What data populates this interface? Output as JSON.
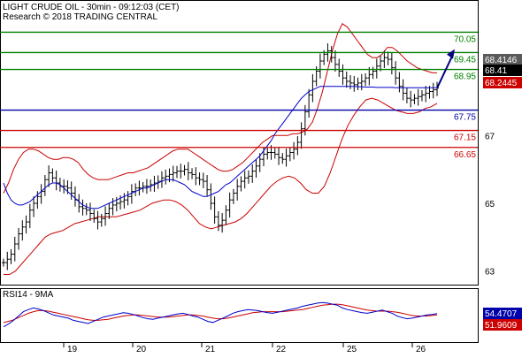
{
  "header": {
    "title": "LIGHT CRUDE OIL - 30min - 09:12:03 (CET)",
    "copyright": "Research © 2018 TRADING CENTRAL"
  },
  "colors": {
    "support": "#cc0000",
    "pivot": "#0000aa",
    "resistance": "#008000",
    "price_bars": "#000000",
    "moving_average": "#0000cc",
    "bollinger": "#cc0000",
    "arrow": "#000080",
    "badge_gray": "#5a5a5a",
    "badge_black": "#000000",
    "badge_red": "#cc0000",
    "badge_blue": "#0000aa"
  },
  "chart_data": [
    {
      "type": "line",
      "title": "",
      "ylim": [
        62.6,
        71.0
      ],
      "y_ticks": [
        63,
        65,
        67
      ],
      "x_ticks": [
        "19",
        "20",
        "21",
        "22",
        "25",
        "26"
      ],
      "grid": false,
      "levels": [
        {
          "value": 70.05,
          "label": "70.05",
          "kind": "resistance"
        },
        {
          "value": 69.45,
          "label": "69.45",
          "kind": "resistance"
        },
        {
          "value": 68.95,
          "label": "68.95",
          "kind": "resistance"
        },
        {
          "value": 67.75,
          "label": "67.75",
          "kind": "pivot"
        },
        {
          "value": 67.15,
          "label": "67.15",
          "kind": "support"
        },
        {
          "value": 66.65,
          "label": "66.65",
          "kind": "support"
        }
      ],
      "badges": [
        {
          "value": 68.4146,
          "label": "68.4146",
          "style": "gray"
        },
        {
          "value": 68.41,
          "label": "68.41",
          "style": "black"
        },
        {
          "value": 68.2445,
          "label": "68.2445",
          "style": "red"
        }
      ],
      "close": [
        63.25,
        63.35,
        63.5,
        63.8,
        64.1,
        64.3,
        64.45,
        64.8,
        65.0,
        65.2,
        65.35,
        65.7,
        65.9,
        65.75,
        65.6,
        65.5,
        65.5,
        65.45,
        65.3,
        65.1,
        64.9,
        64.85,
        64.8,
        64.7,
        64.55,
        64.45,
        64.55,
        64.7,
        64.85,
        64.95,
        65.0,
        65.05,
        65.1,
        65.2,
        65.35,
        65.45,
        65.45,
        65.5,
        65.5,
        65.55,
        65.6,
        65.65,
        65.75,
        65.8,
        65.85,
        65.9,
        65.95,
        65.95,
        66.0,
        65.9,
        65.85,
        65.75,
        65.7,
        65.65,
        65.4,
        65.0,
        64.6,
        64.35,
        64.5,
        64.8,
        65.1,
        65.3,
        65.5,
        65.65,
        65.75,
        65.8,
        65.95,
        66.1,
        66.3,
        66.45,
        66.5,
        66.5,
        66.45,
        66.35,
        66.3,
        66.4,
        66.5,
        66.6,
        66.8,
        67.2,
        67.7,
        68.2,
        68.6,
        68.9,
        69.2,
        69.4,
        69.5,
        69.3,
        69.1,
        68.9,
        68.7,
        68.6,
        68.55,
        68.5,
        68.55,
        68.6,
        68.7,
        68.8,
        68.9,
        69.05,
        69.2,
        69.3,
        69.25,
        69.0,
        68.7,
        68.45,
        68.25,
        68.1,
        68.05,
        68.1,
        68.15,
        68.2,
        68.25,
        68.3,
        68.35,
        68.4
      ],
      "ma": [
        65.6,
        65.3,
        65.1,
        65.0,
        64.95,
        64.95,
        65.0,
        65.05,
        65.15,
        65.25,
        65.35,
        65.45,
        65.55,
        65.6,
        65.6,
        65.55,
        65.45,
        65.35,
        65.25,
        65.15,
        65.05,
        64.95,
        64.9,
        64.85,
        64.85,
        64.85,
        64.9,
        64.95,
        65.0,
        65.05,
        65.1,
        65.15,
        65.2,
        65.25,
        65.3,
        65.35,
        65.4,
        65.45,
        65.45,
        65.5,
        65.55,
        65.6,
        65.65,
        65.7,
        65.7,
        65.7,
        65.65,
        65.6,
        65.55,
        65.45,
        65.35,
        65.3,
        65.25,
        65.2,
        65.2,
        65.25,
        65.3,
        65.35,
        65.45,
        65.55,
        65.6,
        65.7,
        65.8,
        65.9,
        66.0,
        66.1,
        66.2,
        66.3,
        66.4,
        66.55,
        66.7,
        66.85,
        67.05,
        67.2,
        67.35,
        67.5,
        67.65,
        67.8,
        67.95,
        68.1,
        68.2,
        68.3,
        68.35,
        68.4,
        68.45,
        68.45,
        68.45,
        68.45,
        68.45,
        68.45,
        68.45,
        68.45,
        68.45,
        68.45,
        68.44,
        68.44,
        68.43,
        68.43,
        68.43,
        68.42,
        68.42,
        68.42,
        68.42,
        68.42,
        68.41,
        68.41,
        68.41,
        68.41,
        68.41,
        68.41,
        68.41,
        68.41,
        68.41,
        68.41,
        68.41,
        68.41
      ],
      "bb_upper": [
        65.3,
        65.6,
        66.0,
        66.3,
        66.5,
        66.6,
        66.6,
        66.55,
        66.45,
        66.35,
        66.3,
        66.3,
        66.35,
        66.35,
        66.3,
        66.2,
        66.0,
        65.85,
        65.75,
        65.7,
        65.7,
        65.7,
        65.75,
        65.8,
        65.85,
        65.9,
        65.9,
        65.95,
        66.0,
        66.05,
        66.15,
        66.25,
        66.35,
        66.45,
        66.55,
        66.6,
        66.6,
        66.6,
        66.5,
        66.4,
        66.3,
        66.2,
        66.1,
        66.0,
        65.95,
        65.95,
        66.0,
        66.1,
        66.2,
        66.35,
        66.5,
        66.65,
        66.8,
        66.9,
        67.0,
        67.0,
        67.0,
        67.0,
        67.05,
        67.05,
        67.1,
        67.2,
        67.4,
        67.8,
        68.3,
        68.9,
        69.5,
        70.0,
        70.3,
        70.2,
        70.0,
        69.8,
        69.6,
        69.4,
        69.3,
        69.3,
        69.4,
        69.6,
        69.6,
        69.5,
        69.35,
        69.2,
        69.1,
        69.0,
        68.95,
        68.9,
        68.85,
        68.85
      ],
      "bb_lower": [
        62.9,
        62.9,
        63.0,
        63.2,
        63.4,
        63.6,
        63.8,
        64.0,
        64.1,
        64.15,
        64.2,
        64.3,
        64.4,
        64.45,
        64.5,
        64.55,
        64.6,
        64.6,
        64.6,
        64.6,
        64.65,
        64.7,
        64.75,
        64.8,
        64.9,
        65.0,
        65.05,
        65.1,
        65.1,
        65.05,
        64.95,
        64.8,
        64.6,
        64.4,
        64.3,
        64.25,
        64.3,
        64.35,
        64.4,
        64.45,
        64.55,
        64.7,
        64.9,
        65.1,
        65.3,
        65.5,
        65.65,
        65.75,
        65.8,
        65.75,
        65.6,
        65.4,
        65.3,
        65.3,
        65.5,
        65.9,
        66.4,
        66.9,
        67.3,
        67.6,
        67.85,
        68.05,
        68.1,
        68.05,
        67.95,
        67.85,
        67.75,
        67.7,
        67.65,
        67.65,
        67.7,
        67.8,
        67.85,
        67.95
      ]
    },
    {
      "type": "line",
      "title": "RSI14 - 9MA",
      "ylim": [
        0,
        100
      ],
      "x_ticks": [
        "19",
        "20",
        "21",
        "22",
        "25",
        "26"
      ],
      "badges": [
        {
          "value": 54.4707,
          "label": "54.4707",
          "style": "blue"
        },
        {
          "value": 51.9609,
          "label": "51.9609",
          "style": "red"
        }
      ],
      "rsi": [
        30,
        35,
        42,
        50,
        58,
        62,
        65,
        63,
        60,
        56,
        52,
        50,
        48,
        46,
        42,
        40,
        38,
        36,
        40,
        44,
        48,
        50,
        52,
        54,
        56,
        55,
        53,
        50,
        47,
        45,
        44,
        46,
        48,
        50,
        52,
        54,
        55,
        53,
        50,
        48,
        44,
        40,
        38,
        42,
        46,
        50,
        55,
        58,
        60,
        62,
        61,
        60,
        58,
        56,
        55,
        57,
        59,
        61,
        63,
        65,
        68,
        70,
        72,
        74,
        75,
        74,
        72,
        70,
        65,
        62,
        60,
        58,
        56,
        55,
        57,
        59,
        61,
        58,
        55,
        50,
        47,
        45,
        46,
        48,
        50,
        52,
        53,
        54.5
      ],
      "rsi_ma": [
        38,
        40,
        43,
        47,
        51,
        55,
        58,
        60,
        60,
        59,
        57,
        55,
        53,
        51,
        49,
        47,
        45,
        43,
        42,
        42,
        43,
        44,
        46,
        48,
        50,
        51,
        52,
        52,
        51,
        50,
        49,
        48,
        48,
        48,
        49,
        50,
        51,
        52,
        52,
        51,
        50,
        48,
        46,
        45,
        45,
        46,
        48,
        50,
        52,
        54,
        56,
        57,
        58,
        58,
        58,
        58,
        58,
        59,
        60,
        61,
        62,
        64,
        66,
        68,
        70,
        71,
        72,
        72,
        71,
        69,
        67,
        65,
        63,
        61,
        60,
        59,
        59,
        59,
        58,
        57,
        55,
        53,
        51,
        50,
        50,
        50,
        51,
        52
      ]
    }
  ]
}
